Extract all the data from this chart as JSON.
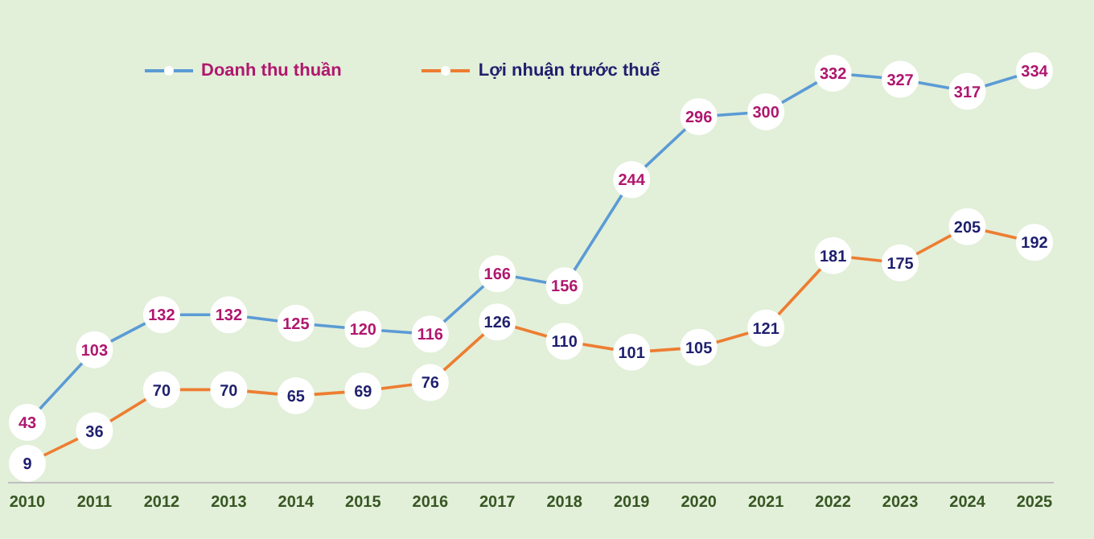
{
  "chart_data": {
    "type": "line",
    "categories": [
      "2010",
      "2011",
      "2012",
      "2013",
      "2014",
      "2015",
      "2016",
      "2017",
      "2018",
      "2019",
      "2020",
      "2021",
      "2022",
      "2023",
      "2024",
      "2025"
    ],
    "series": [
      {
        "name": "Doanh thu thuần",
        "color": "#5b9bd5",
        "values": [
          43,
          103,
          132,
          132,
          125,
          120,
          116,
          166,
          156,
          244,
          296,
          300,
          332,
          327,
          317,
          334
        ]
      },
      {
        "name": "Lợi nhuận trước thuế",
        "color": "#ed7d31",
        "values": [
          9,
          36,
          70,
          70,
          65,
          69,
          76,
          126,
          110,
          101,
          105,
          121,
          181,
          175,
          205,
          192
        ]
      }
    ],
    "data_labels": true,
    "marker": "circle",
    "legend": "top left",
    "grid": false,
    "line_style": "solid"
  }
}
